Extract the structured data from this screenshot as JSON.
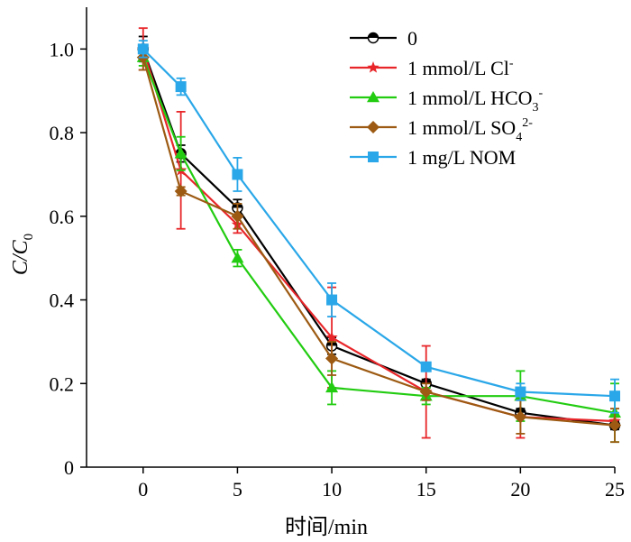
{
  "chart_data": {
    "type": "line",
    "title": "",
    "xlabel": "时间/min",
    "ylabel": {
      "main": "C/C",
      "sub": "0"
    },
    "xlim": [
      -3,
      25
    ],
    "ylim": [
      0,
      1.1
    ],
    "xticks": [
      0,
      5,
      10,
      15,
      20,
      25
    ],
    "yticks": [
      0,
      0.2,
      0.4,
      0.6,
      0.8,
      1.0
    ],
    "xtick_labels": [
      "0",
      "5",
      "10",
      "15",
      "20",
      "25"
    ],
    "ytick_labels": [
      "0",
      "0.2",
      "0.4",
      "0.6",
      "0.8",
      "1.0"
    ],
    "grid": false,
    "legend_position": "top-right",
    "x": [
      0,
      2,
      5,
      10,
      15,
      20,
      25
    ],
    "series": [
      {
        "name": "0",
        "legend": {
          "main": "0"
        },
        "color": "#000000",
        "marker": "half-circle",
        "values": [
          1.0,
          0.75,
          0.62,
          0.29,
          0.2,
          0.13,
          0.1
        ],
        "errors": [
          0.03,
          0.02,
          0.02,
          0.02,
          0.01,
          0.01,
          0.01
        ]
      },
      {
        "name": "1 mmol/L Cl-",
        "legend": {
          "main": "1 mmol/L Cl",
          "sup": "-"
        },
        "color": "#e8262a",
        "marker": "star",
        "values": [
          1.0,
          0.71,
          0.58,
          0.31,
          0.18,
          0.12,
          0.11
        ],
        "errors": [
          0.05,
          0.14,
          0.02,
          0.12,
          0.11,
          0.05,
          0.01
        ]
      },
      {
        "name": "1 mmol/L HCO3-",
        "legend": {
          "main": "1 mmol/L HCO",
          "sub": "3",
          "sup": "-"
        },
        "color": "#22cc11",
        "marker": "triangle",
        "values": [
          0.98,
          0.75,
          0.5,
          0.19,
          0.17,
          0.17,
          0.13
        ],
        "errors": [
          0.02,
          0.04,
          0.02,
          0.04,
          0.02,
          0.06,
          0.07
        ]
      },
      {
        "name": "1 mmol/L SO42-",
        "legend": {
          "main": "1 mmol/L SO",
          "sub": "4",
          "sup": "2-"
        },
        "color": "#9c5a12",
        "marker": "diamond",
        "values": [
          0.98,
          0.66,
          0.6,
          0.26,
          0.18,
          0.12,
          0.1
        ],
        "errors": [
          0.03,
          0.01,
          0.03,
          0.04,
          0.02,
          0.04,
          0.04
        ]
      },
      {
        "name": "1 mg/L NOM",
        "legend": {
          "main": "1 mg/L NOM"
        },
        "color": "#2aa7e8",
        "marker": "square",
        "values": [
          1.0,
          0.91,
          0.7,
          0.4,
          0.24,
          0.18,
          0.17
        ],
        "errors": [
          0.02,
          0.02,
          0.04,
          0.04,
          0.01,
          0.02,
          0.04
        ]
      }
    ]
  }
}
